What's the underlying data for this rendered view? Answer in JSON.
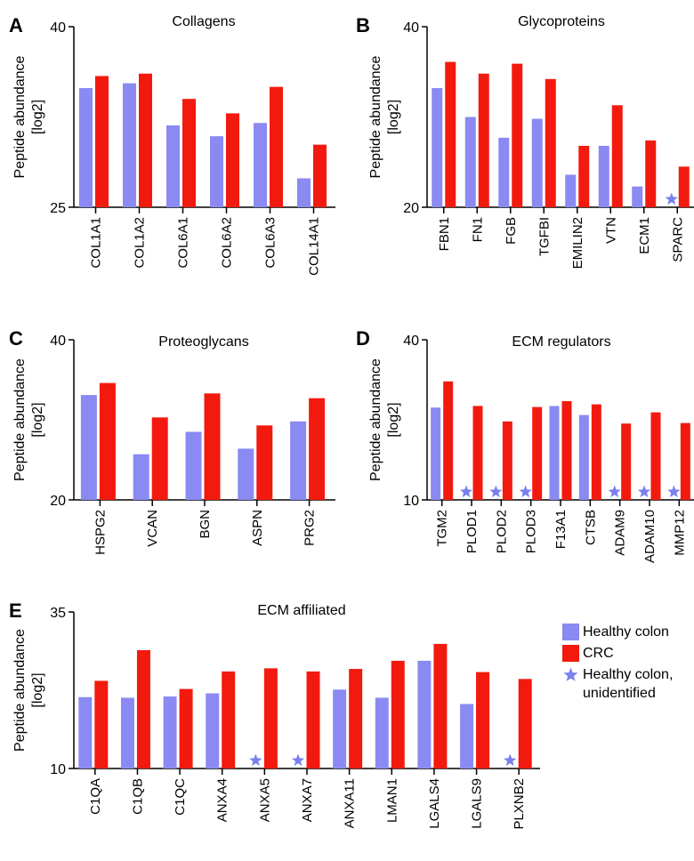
{
  "colors": {
    "healthy": "#8a8af2",
    "crc": "#f21a0e",
    "star": "#7a80ee"
  },
  "legend": {
    "healthy": "Healthy colon",
    "crc": "CRC",
    "unidentified_line1": "Healthy colon,",
    "unidentified_line2": "unidentified"
  },
  "chart_data": [
    {
      "panel": "A",
      "type": "bar",
      "title": "Collagens",
      "ylabel": "Peptide abundance",
      "ylabel2": "[log2]",
      "ylim": [
        25,
        40
      ],
      "yticks": [
        "40",
        "25"
      ],
      "categories": [
        "COL1A1",
        "COL1A2",
        "COL6A1",
        "COL6A2",
        "COL6A3",
        "COL14A1"
      ],
      "series": [
        {
          "name": "Healthy colon",
          "values": [
            34.9,
            35.3,
            31.8,
            30.9,
            32.0,
            27.4
          ]
        },
        {
          "name": "CRC",
          "values": [
            35.9,
            36.1,
            34.0,
            32.8,
            35.0,
            30.2
          ]
        }
      ],
      "unidentified": []
    },
    {
      "panel": "B",
      "type": "bar",
      "title": "Glycoproteins",
      "ylabel": "Peptide abundance",
      "ylabel2": "[log2]",
      "ylim": [
        20,
        40
      ],
      "yticks": [
        "40",
        "20"
      ],
      "categories": [
        "FBN1",
        "FN1",
        "FGB",
        "TGFBI",
        "EMILIN2",
        "VTN",
        "ECM1",
        "SPARC"
      ],
      "series": [
        {
          "name": "Healthy colon",
          "values": [
            33.2,
            30.0,
            27.7,
            29.8,
            23.6,
            26.8,
            22.3,
            null
          ]
        },
        {
          "name": "CRC",
          "values": [
            36.1,
            34.8,
            35.9,
            34.2,
            26.8,
            31.3,
            27.4,
            24.5
          ]
        }
      ],
      "unidentified": [
        7
      ]
    },
    {
      "panel": "C",
      "type": "bar",
      "title": "Proteoglycans",
      "ylabel": "Peptide abundance",
      "ylabel2": "[log2]",
      "ylim": [
        20,
        40
      ],
      "yticks": [
        "40",
        "20"
      ],
      "categories": [
        "HSPG2",
        "VCAN",
        "BGN",
        "ASPN",
        "PRG2"
      ],
      "series": [
        {
          "name": "Healthy colon",
          "values": [
            33.1,
            25.7,
            28.5,
            26.4,
            29.8
          ]
        },
        {
          "name": "CRC",
          "values": [
            34.6,
            30.3,
            33.3,
            29.3,
            32.7
          ]
        }
      ],
      "unidentified": []
    },
    {
      "panel": "D",
      "type": "bar",
      "title": "ECM regulators",
      "ylabel": "Peptide abundance",
      "ylabel2": "[log2]",
      "ylim": [
        10,
        40
      ],
      "yticks": [
        "40",
        "10"
      ],
      "categories": [
        "TGM2",
        "PLOD1",
        "PLOD2",
        "PLOD3",
        "F13A1",
        "CTSB",
        "ADAM9",
        "ADAM10",
        "MMP12"
      ],
      "series": [
        {
          "name": "Healthy colon",
          "values": [
            27.3,
            null,
            null,
            null,
            27.6,
            25.9,
            null,
            null,
            null
          ]
        },
        {
          "name": "CRC",
          "values": [
            32.2,
            27.6,
            24.7,
            27.4,
            28.5,
            27.9,
            24.3,
            26.4,
            24.4
          ]
        }
      ],
      "unidentified": [
        1,
        2,
        3,
        6,
        7,
        8
      ]
    },
    {
      "panel": "E",
      "type": "bar",
      "title": "ECM affiliated",
      "ylabel": "Peptide abundance",
      "ylabel2": "[log2]",
      "ylim": [
        10,
        35
      ],
      "yticks": [
        "35",
        "10"
      ],
      "categories": [
        "C1QA",
        "C1QB",
        "C1QC",
        "ANXA4",
        "ANXA5",
        "ANXA7",
        "ANXA11",
        "LMAN1",
        "LGALS4",
        "LGALS9",
        "PLXNB2"
      ],
      "series": [
        {
          "name": "Healthy colon",
          "values": [
            21.4,
            21.3,
            21.5,
            22.0,
            null,
            null,
            22.6,
            21.3,
            27.2,
            20.3,
            null
          ]
        },
        {
          "name": "CRC",
          "values": [
            24.0,
            28.9,
            22.7,
            25.5,
            26.0,
            25.5,
            25.9,
            27.2,
            29.9,
            25.4,
            24.3
          ]
        }
      ],
      "unidentified": [
        4,
        5,
        10
      ]
    }
  ]
}
